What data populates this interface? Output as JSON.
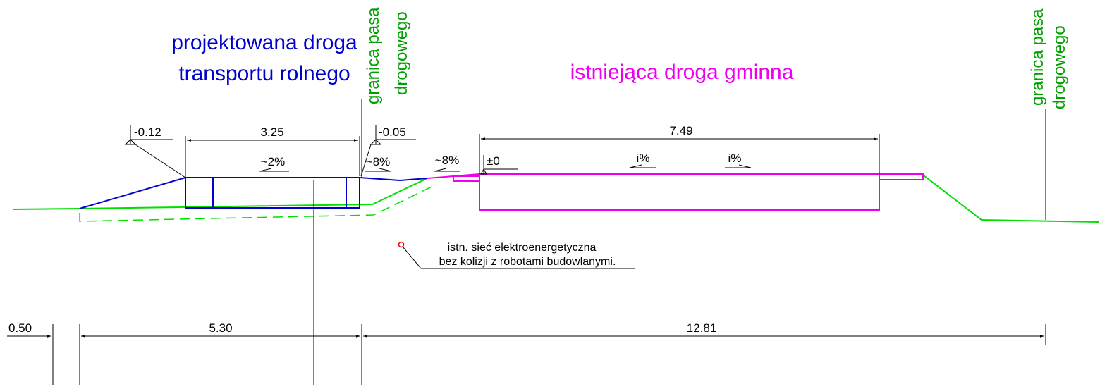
{
  "labels": {
    "projected_road": [
      "projektowana droga",
      "transportu rolnego"
    ],
    "existing_road": "istniejąca droga gminna",
    "boundary_left": [
      "granica pasa",
      "drogowego"
    ],
    "boundary_right": [
      "granica pasa",
      "drogowego"
    ]
  },
  "dimensions": {
    "road_width": "3.25",
    "existing_width": "7.49",
    "left_offset": "0.50",
    "left_span": "5.30",
    "right_span": "12.81"
  },
  "levels": [
    "-0.12",
    "-0.05",
    "±0"
  ],
  "slopes": [
    "~2%",
    "~8%",
    "~8%",
    "i%",
    "i%"
  ],
  "note": [
    "istn. sieć elektroenergetyczna",
    "bez kolizji z robotami budowlanymi."
  ]
}
